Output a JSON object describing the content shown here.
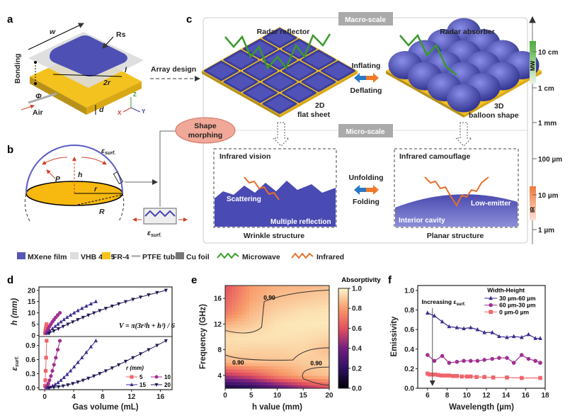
{
  "panels": {
    "a": "a",
    "b": "b",
    "c": "c",
    "d": "d",
    "e": "e",
    "f": "f"
  },
  "panel_a": {
    "w": "w",
    "rs": "Rs",
    "bonding": "Bonding",
    "two_r": "2r",
    "l": "l",
    "phi": "Φ",
    "air": "Air",
    "d": "d",
    "axis_z": "Z",
    "axis_x": "X",
    "axis_y": "Y",
    "array_design": "Array design"
  },
  "panel_b": {
    "eps": "ε",
    "eps_sub": "surf.",
    "h": "h",
    "p": "P",
    "r": "r",
    "R": "R"
  },
  "panel_c": {
    "macro": "Macro-scale",
    "micro": "Micro-scale",
    "radar_reflector": "Radar reflector",
    "radar_absorber": "Radar absorber",
    "inflating": "Inflating",
    "deflating": "Deflating",
    "flat_2d": "2D",
    "flat_sheet": "flat sheet",
    "shape_3d": "3D",
    "balloon": "balloon shape",
    "shape_morphing_1": "Shape",
    "shape_morphing_2": "morphing",
    "infrared_vision": "Infrared vision",
    "infrared_camouflage": "Infrared camouflage",
    "unfolding": "Unfolding",
    "folding": "Folding",
    "scattering": "Scattering",
    "multiple_reflection": "Multiple reflection",
    "low_emitter": "Low-emitter",
    "interior_cavity": "Interior cavity",
    "wrinkle": "Wrinkle structure",
    "planar": "Planar structure",
    "scale": {
      "ticks": [
        "10 cm",
        "1 cm",
        "1 mm",
        "100 µm",
        "10 µm",
        "1 µm"
      ],
      "mw": "MW",
      "ir": "IR"
    }
  },
  "legend": [
    {
      "label": "MXene film",
      "color": "#5558b5"
    },
    {
      "label": "VHB 4905",
      "color": "#dddddd"
    },
    {
      "label": "FR-4",
      "color": "#f7c21a"
    },
    {
      "label": "PTFE tube",
      "color": "#bbbbbb"
    },
    {
      "label": "Cu foil",
      "color": "#777777"
    },
    {
      "label": "Microwave",
      "color": "#3a9a2a"
    },
    {
      "label": "Infrared",
      "color": "#e5702a"
    }
  ],
  "chart_data": [
    {
      "type": "line",
      "panel": "d",
      "xlabel": "Gas volume (mL)",
      "ylabel_top": "h (mm)",
      "ylabel_bottom": "ε",
      "ylabel_bottom_sub": "surf.",
      "xlim": [
        -0.8,
        17.6
      ],
      "ylim_top": [
        -0.5,
        21.5
      ],
      "ylim_bottom": [
        -0.04,
        1.09
      ],
      "xticks": [
        0,
        4,
        8,
        12,
        16
      ],
      "yticks_top": [
        0,
        5,
        10,
        15,
        20
      ],
      "yticks_bottom": [
        "0.0",
        "0.3",
        "0.6",
        "0.9"
      ],
      "formula": "V = π(3r²h + h³) / 6",
      "legend_title": "r (mm)",
      "series": [
        {
          "name": "5",
          "color": "#f0646a",
          "marker": "square",
          "V": [
            0.04,
            0.083,
            0.132,
            0.191,
            0.262
          ],
          "h": [
            1,
            2,
            3,
            4,
            5
          ],
          "eps": [
            0.04,
            0.16,
            0.36,
            0.64,
            1.0
          ]
        },
        {
          "name": "10",
          "color": "#a03090",
          "marker": "circle",
          "V": [
            0.158,
            0.318,
            0.485,
            0.662,
            0.851,
            1.056,
            1.279,
            1.525,
            1.795,
            2.094
          ],
          "h": [
            1,
            2,
            3,
            4,
            5,
            6,
            7,
            8,
            9,
            10
          ],
          "eps": [
            0.01,
            0.04,
            0.09,
            0.16,
            0.25,
            0.36,
            0.49,
            0.64,
            0.81,
            1.0
          ]
        },
        {
          "name": "15",
          "color": "#3c2a8c",
          "marker": "triangle-up",
          "V": [
            0.354,
            0.711,
            1.074,
            1.447,
            1.833,
            2.234,
            2.654,
            3.096,
            3.563,
            4.058,
            4.585,
            5.146,
            5.745,
            6.385,
            7.069
          ],
          "h": [
            1,
            2,
            3,
            4,
            5,
            6,
            7,
            8,
            9,
            10,
            11,
            12,
            13,
            14,
            15
          ],
          "eps": [
            0.004,
            0.018,
            0.04,
            0.071,
            0.111,
            0.16,
            0.218,
            0.284,
            0.36,
            0.444,
            0.538,
            0.64,
            0.751,
            0.871,
            1.0
          ]
        },
        {
          "name": "20",
          "color": "#221a55",
          "marker": "triangle-down",
          "V": [
            0.629,
            1.261,
            1.899,
            2.547,
            3.207,
            3.883,
            4.578,
            5.295,
            6.036,
            6.807,
            7.608,
            8.445,
            9.319,
            10.233,
            11.192,
            12.198,
            13.254,
            14.363,
            15.529,
            16.755
          ],
          "h": [
            1,
            2,
            3,
            4,
            5,
            6,
            7,
            8,
            9,
            10,
            11,
            12,
            13,
            14,
            15,
            16,
            17,
            18,
            19,
            20
          ],
          "eps": [
            0.0025,
            0.01,
            0.0225,
            0.04,
            0.0625,
            0.09,
            0.1225,
            0.16,
            0.2025,
            0.25,
            0.3025,
            0.36,
            0.4225,
            0.49,
            0.5625,
            0.64,
            0.7225,
            0.81,
            0.9025,
            1.0
          ]
        }
      ]
    },
    {
      "type": "heatmap",
      "panel": "e",
      "xlabel": "h value (mm)",
      "ylabel": "Frequency (GHz)",
      "colorbar_label": "Absorptivity",
      "xlim": [
        0,
        20
      ],
      "ylim": [
        2,
        18
      ],
      "xticks": [
        0,
        5,
        10,
        15,
        20
      ],
      "yticks": [
        4,
        8,
        12,
        16
      ],
      "cbar_ticks": [
        "0.0",
        "0.2",
        "0.4",
        "0.6",
        "0.8",
        "1.0"
      ],
      "x": [
        0,
        5,
        10,
        15,
        20
      ],
      "y": [
        2,
        4,
        6,
        8,
        10,
        12,
        14,
        16,
        18
      ],
      "z": [
        [
          0.1,
          0.15,
          0.3,
          0.45,
          0.6
        ],
        [
          0.5,
          0.6,
          0.75,
          0.85,
          0.88
        ],
        [
          0.85,
          0.88,
          0.88,
          0.9,
          0.93
        ],
        [
          0.93,
          0.92,
          0.92,
          0.93,
          0.87
        ],
        [
          0.95,
          0.96,
          0.96,
          0.95,
          0.93
        ],
        [
          0.85,
          0.9,
          0.96,
          0.97,
          0.97
        ],
        [
          0.7,
          0.86,
          0.92,
          0.95,
          0.96
        ],
        [
          0.65,
          0.82,
          0.88,
          0.9,
          0.92
        ],
        [
          0.6,
          0.8,
          0.85,
          0.86,
          0.88
        ]
      ],
      "contour_labels": [
        "0.90",
        "0.90",
        "0.90"
      ]
    },
    {
      "type": "line",
      "panel": "f",
      "xlabel": "Wavelength (µm)",
      "ylabel": "Emissivity",
      "xlim": [
        5,
        18
      ],
      "ylim": [
        0,
        1.05
      ],
      "xticks": [
        6,
        8,
        10,
        12,
        14,
        16,
        18
      ],
      "yticks": [
        "0.0",
        "0.2",
        "0.4",
        "0.6",
        "0.8",
        "1.0"
      ],
      "legend_title": "Width-Height",
      "annotation": "Increasing ε",
      "annotation_sub": "surf.",
      "series": [
        {
          "name": "30 µm-60 µm",
          "color": "#3c2a8c",
          "marker": "triangle-up",
          "x": [
            6,
            6.7,
            7.5,
            8.2,
            9,
            9.7,
            10.4,
            11.1,
            11.8,
            12.6,
            13.3,
            14.1,
            14.8,
            15.6,
            16.3,
            17,
            17.5
          ],
          "y": [
            0.77,
            0.74,
            0.68,
            0.63,
            0.62,
            0.61,
            0.62,
            0.6,
            0.57,
            0.57,
            0.53,
            0.52,
            0.53,
            0.52,
            0.55,
            0.51,
            0.51
          ]
        },
        {
          "name": "60 µm-30 µm",
          "color": "#a03090",
          "marker": "circle",
          "x": [
            6,
            6.7,
            7.5,
            8.2,
            9,
            9.7,
            10.4,
            11.1,
            11.8,
            12.6,
            13.3,
            14.1,
            14.8,
            15.6,
            16.3,
            17,
            17.5
          ],
          "y": [
            0.34,
            0.28,
            0.33,
            0.26,
            0.27,
            0.28,
            0.28,
            0.28,
            0.29,
            0.3,
            0.31,
            0.31,
            0.26,
            0.34,
            0.3,
            0.28,
            0.26
          ]
        },
        {
          "name": "0 µm-0 µm",
          "color": "#f0646a",
          "marker": "square",
          "x": [
            6,
            6.2,
            6.5,
            6.8,
            7.1,
            7.4,
            7.8,
            8.2,
            8.6,
            9,
            9.5,
            10,
            10.4,
            11,
            11.8,
            12.7,
            14.1,
            15.6,
            17.5
          ],
          "y": [
            0.15,
            0.14,
            0.14,
            0.14,
            0.135,
            0.13,
            0.13,
            0.13,
            0.125,
            0.125,
            0.12,
            0.12,
            0.12,
            0.115,
            0.115,
            0.11,
            0.11,
            0.105,
            0.105
          ]
        }
      ]
    }
  ]
}
